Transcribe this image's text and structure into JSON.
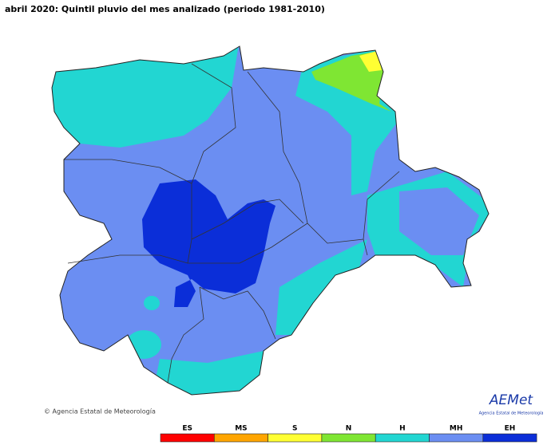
{
  "title": "abril 2020: Quintil pluvio del mes analizado (periodo 1981-2010)",
  "copyright": "© Agencia Estatal de Meteorología",
  "logo": {
    "name": "AEMet",
    "subtitle": "Agencia Estatal de Meteorología"
  },
  "legend": [
    {
      "label": "ES",
      "color": "#ff0000"
    },
    {
      "label": "MS",
      "color": "#ffa500"
    },
    {
      "label": "S",
      "color": "#ffff33"
    },
    {
      "label": "N",
      "color": "#7fe633"
    },
    {
      "label": "H",
      "color": "#22d6d2"
    },
    {
      "label": "MH",
      "color": "#6b8ef2"
    },
    {
      "label": "EH",
      "color": "#0b2ed8"
    }
  ]
}
